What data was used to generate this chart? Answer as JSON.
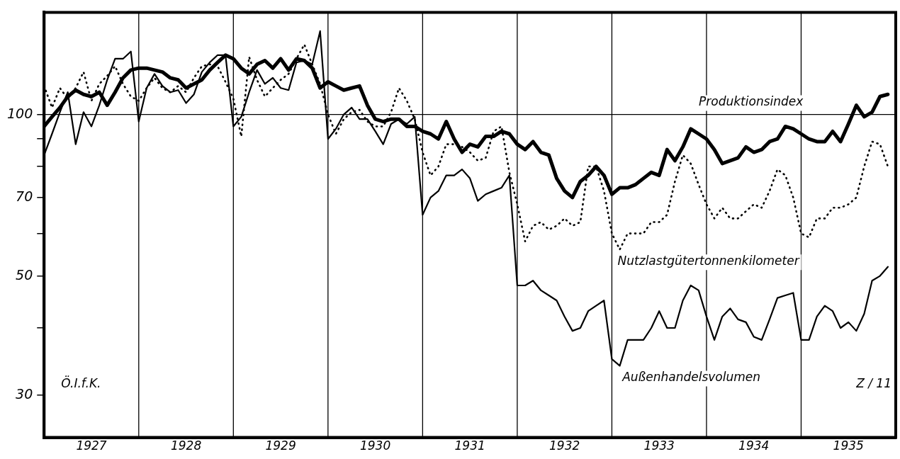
{
  "chart_data": {
    "type": "line",
    "log": true,
    "grid": false,
    "legend": false,
    "marker": "none",
    "x": [
      "1927-01",
      "1927-02",
      "1927-03",
      "1927-04",
      "1927-05",
      "1927-06",
      "1927-07",
      "1927-08",
      "1927-09",
      "1927-10",
      "1927-11",
      "1927-12",
      "1928-01",
      "1928-02",
      "1928-03",
      "1928-04",
      "1928-05",
      "1928-06",
      "1928-07",
      "1928-08",
      "1928-09",
      "1928-10",
      "1928-11",
      "1928-12",
      "1929-01",
      "1929-02",
      "1929-03",
      "1929-04",
      "1929-05",
      "1929-06",
      "1929-07",
      "1929-08",
      "1929-09",
      "1929-10",
      "1929-11",
      "1929-12",
      "1930-01",
      "1930-02",
      "1930-03",
      "1930-04",
      "1930-05",
      "1930-06",
      "1930-07",
      "1930-08",
      "1930-09",
      "1930-10",
      "1930-11",
      "1930-12",
      "1931-01",
      "1931-02",
      "1931-03",
      "1931-04",
      "1931-05",
      "1931-06",
      "1931-07",
      "1931-08",
      "1931-09",
      "1931-10",
      "1931-11",
      "1931-12",
      "1932-01",
      "1932-02",
      "1932-03",
      "1932-04",
      "1932-05",
      "1932-06",
      "1932-07",
      "1932-08",
      "1932-09",
      "1932-10",
      "1932-11",
      "1932-12",
      "1933-01",
      "1933-02",
      "1933-03",
      "1933-04",
      "1933-05",
      "1933-06",
      "1933-07",
      "1933-08",
      "1933-09",
      "1933-10",
      "1933-11",
      "1933-12",
      "1934-01",
      "1934-02",
      "1934-03",
      "1934-04",
      "1934-05",
      "1934-06",
      "1934-07",
      "1934-08",
      "1934-09",
      "1934-10",
      "1934-11",
      "1934-12",
      "1935-01",
      "1935-02",
      "1935-03",
      "1935-04",
      "1935-05",
      "1935-06",
      "1935-07",
      "1935-08",
      "1935-09",
      "1935-10",
      "1935-11",
      "1935-12"
    ],
    "series": [
      {
        "name": "Produktionsindex",
        "color": "#000000",
        "line_style": "solid",
        "values": [
          95,
          99,
          103,
          108,
          111,
          109,
          108,
          110,
          104,
          110,
          117,
          121,
          122,
          122,
          121,
          120,
          117,
          116,
          112,
          114,
          116,
          121,
          125,
          129,
          127,
          122,
          119,
          124,
          126,
          122,
          127,
          121,
          127,
          126,
          122,
          112,
          115,
          113,
          111,
          112,
          113,
          104,
          98,
          97,
          98,
          98,
          95,
          95,
          93,
          92,
          90,
          97,
          90,
          85,
          88,
          87,
          91,
          91,
          93,
          92,
          88,
          86,
          89,
          85,
          84,
          76,
          72,
          70,
          75,
          77,
          80,
          77,
          71,
          73,
          73,
          74,
          76,
          78,
          77,
          86,
          82,
          87,
          94,
          92,
          90,
          86,
          81,
          82,
          83,
          87,
          85,
          86,
          89,
          90,
          95,
          94,
          92,
          90,
          89,
          89,
          93,
          89,
          96,
          104,
          99,
          101,
          108,
          109
        ]
      },
      {
        "name": "Nutzlastgütertonnenkilometer",
        "color": "#000000",
        "line_style": "dotted",
        "values": [
          113,
          103,
          112,
          107,
          112,
          120,
          106,
          114,
          118,
          123,
          114,
          108,
          106,
          112,
          117,
          112,
          110,
          113,
          110,
          117,
          123,
          124,
          123,
          115,
          107,
          91,
          128,
          116,
          108,
          112,
          116,
          119,
          127,
          135,
          124,
          114,
          100,
          92,
          98,
          101,
          102,
          97,
          95,
          95,
          101,
          112,
          106,
          98,
          85,
          77,
          80,
          88,
          88,
          87,
          85,
          82,
          83,
          93,
          95,
          78,
          68,
          58,
          62,
          63,
          61,
          62,
          64,
          62,
          63,
          80,
          80,
          72,
          60,
          56,
          60,
          60,
          60,
          63,
          63,
          65,
          75,
          84,
          81,
          74,
          68,
          64,
          67,
          64,
          64,
          66,
          68,
          67,
          72,
          79,
          77,
          70,
          60,
          59,
          64,
          64,
          67,
          67,
          68,
          70,
          80,
          89,
          88,
          80
        ]
      },
      {
        "name": "Außenhandelsvolumen",
        "color": "#000000",
        "line_style": "solid",
        "values": [
          84,
          92,
          101,
          110,
          88,
          101,
          95,
          104,
          116,
          127,
          127,
          131,
          97,
          112,
          119,
          113,
          110,
          111,
          105,
          109,
          120,
          125,
          129,
          129,
          95,
          99,
          110,
          121,
          114,
          117,
          112,
          111,
          125,
          126,
          124,
          143,
          90,
          94,
          100,
          103,
          98,
          98,
          93,
          88,
          96,
          98,
          96,
          99,
          65,
          70,
          72,
          77,
          77,
          79,
          76,
          69,
          71,
          72,
          73,
          77,
          48,
          48,
          49,
          47,
          46,
          45,
          42,
          39.5,
          40,
          43,
          44,
          45,
          35,
          34,
          38,
          38,
          38,
          40,
          43,
          40,
          40,
          45,
          48,
          47,
          42,
          38,
          42,
          43.5,
          41.5,
          41,
          38.5,
          38,
          41.5,
          45.5,
          46,
          46.5,
          38,
          38,
          42,
          44,
          43,
          40,
          41,
          39.5,
          42.5,
          49,
          50,
          52
        ]
      }
    ],
    "xlim": [
      "1927-01",
      "1936-01"
    ],
    "xticks": [
      {
        "value": "1927-07",
        "label": "1927"
      },
      {
        "value": "1928-07",
        "label": "1928"
      },
      {
        "value": "1929-07",
        "label": "1929"
      },
      {
        "value": "1930-07",
        "label": "1930"
      },
      {
        "value": "1931-07",
        "label": "1931"
      },
      {
        "value": "1932-07",
        "label": "1932"
      },
      {
        "value": "1933-07",
        "label": "1933"
      },
      {
        "value": "1934-07",
        "label": "1934"
      },
      {
        "value": "1935-07",
        "label": "1935"
      }
    ],
    "ylim": [
      25,
      155
    ],
    "yticks": [
      30,
      {
        "value": 40,
        "label": null
      },
      50,
      {
        "value": 60,
        "label": null
      },
      70,
      {
        "value": 80,
        "label": null
      },
      {
        "value": 90,
        "label": null
      },
      100
    ],
    "ref_lines": [
      {
        "axis": "y",
        "value": 100
      },
      {
        "axis": "x",
        "value": "1928-01"
      },
      {
        "axis": "x",
        "value": "1929-01"
      },
      {
        "axis": "x",
        "value": "1930-01"
      },
      {
        "axis": "x",
        "value": "1931-01"
      },
      {
        "axis": "x",
        "value": "1932-01"
      },
      {
        "axis": "x",
        "value": "1933-01"
      },
      {
        "axis": "x",
        "value": "1934-01"
      },
      {
        "axis": "x",
        "value": "1935-01"
      }
    ],
    "annotations": [
      "Ö.I.f.K.",
      "Z / 11"
    ]
  }
}
